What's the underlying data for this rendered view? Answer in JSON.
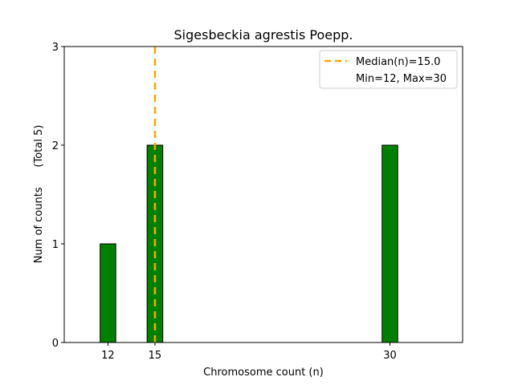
{
  "chart_data": {
    "type": "bar",
    "title": "Sigesbeckia agrestis Poepp.",
    "xlabel": "Chromosome count (n)",
    "ylabel": "Num of counts      (Total 5)",
    "x": [
      12,
      15,
      30
    ],
    "values": [
      1,
      2,
      2
    ],
    "bar_width": 1,
    "bar_color": "#008000",
    "empty_range": [
      11.5,
      33.1
    ],
    "xlim": [
      9.21,
      34.64
    ],
    "ylim": [
      0,
      3
    ],
    "xticks": [
      "12",
      "15",
      "30"
    ],
    "xtick_values": [
      12,
      15,
      30
    ],
    "yticks": [
      "0",
      "1",
      "2",
      "3"
    ],
    "median": 15.0,
    "median_color": "#FFA500",
    "legend": {
      "placement": "top-right",
      "entries": [
        "Median(n)=15.0",
        "Min=12, Max=30"
      ]
    },
    "grid": false
  }
}
